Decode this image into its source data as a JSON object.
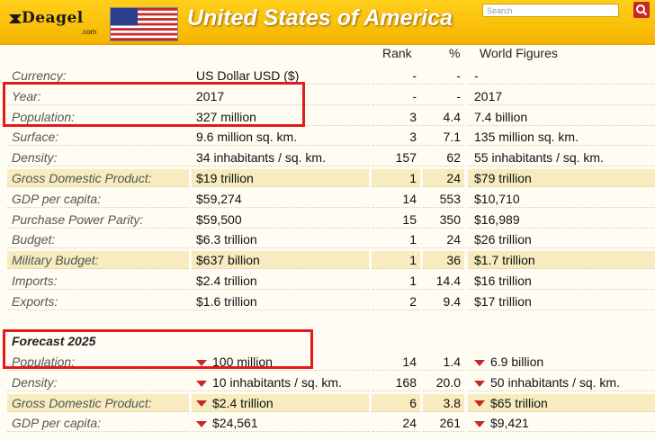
{
  "header": {
    "logo_text": "Deagel",
    "logo_sub": ".com",
    "title": "United States of America",
    "search_placeholder": "Search"
  },
  "columns": {
    "rank": "Rank",
    "pct": "%",
    "world": "World Figures"
  },
  "rows": [
    {
      "label": "Currency:",
      "value": "US Dollar USD ($)",
      "rank": "-",
      "pct": "-",
      "world": "-"
    },
    {
      "label": "Year:",
      "value": "2017",
      "rank": "-",
      "pct": "-",
      "world": "2017"
    },
    {
      "label": "Population:",
      "value": "327 million",
      "rank": "3",
      "pct": "4.4",
      "world": "7.4 billion"
    },
    {
      "label": "Surface:",
      "value": "9.6 million sq. km.",
      "rank": "3",
      "pct": "7.1",
      "world": "135 million sq. km."
    },
    {
      "label": "Density:",
      "value": "34 inhabitants / sq. km.",
      "rank": "157",
      "pct": "62",
      "world": "55 inhabitants / sq. km."
    },
    {
      "label": "Gross Domestic Product:",
      "value": "$19 trillion",
      "rank": "1",
      "pct": "24",
      "world": "$79 trillion"
    },
    {
      "label": "GDP per capita:",
      "value": "$59,274",
      "rank": "14",
      "pct": "553",
      "world": "$10,710"
    },
    {
      "label": "Purchase Power Parity:",
      "value": "$59,500",
      "rank": "15",
      "pct": "350",
      "world": "$16,989"
    },
    {
      "label": "Budget:",
      "value": "$6.3 trillion",
      "rank": "1",
      "pct": "24",
      "world": "$26 trillion"
    },
    {
      "label": "Military Budget:",
      "value": "$637 billion",
      "rank": "1",
      "pct": "36",
      "world": "$1.7 trillion"
    },
    {
      "label": "Imports:",
      "value": "$2.4 trillion",
      "rank": "1",
      "pct": "14.4",
      "world": "$16 trillion"
    },
    {
      "label": "Exports:",
      "value": "$1.6 trillion",
      "rank": "2",
      "pct": "9.4",
      "world": "$17 trillion"
    }
  ],
  "forecast": {
    "title": "Forecast 2025",
    "rows": [
      {
        "label": "Population:",
        "value": "100 million",
        "rank": "14",
        "pct": "1.4",
        "world": "6.9 billion"
      },
      {
        "label": "Density:",
        "value": "10 inhabitants / sq. km.",
        "rank": "168",
        "pct": "20.0",
        "world": "50 inhabitants / sq. km."
      },
      {
        "label": "Gross Domestic Product:",
        "value": "$2.4 trillion",
        "rank": "6",
        "pct": "3.8",
        "world": "$65 trillion"
      },
      {
        "label": "GDP per capita:",
        "value": "$24,561",
        "rank": "24",
        "pct": "261",
        "world": "$9,421"
      }
    ]
  },
  "colors": {
    "header": "#f6b500",
    "highlight": "#f7ebbf",
    "marker": "#e11b1b"
  }
}
